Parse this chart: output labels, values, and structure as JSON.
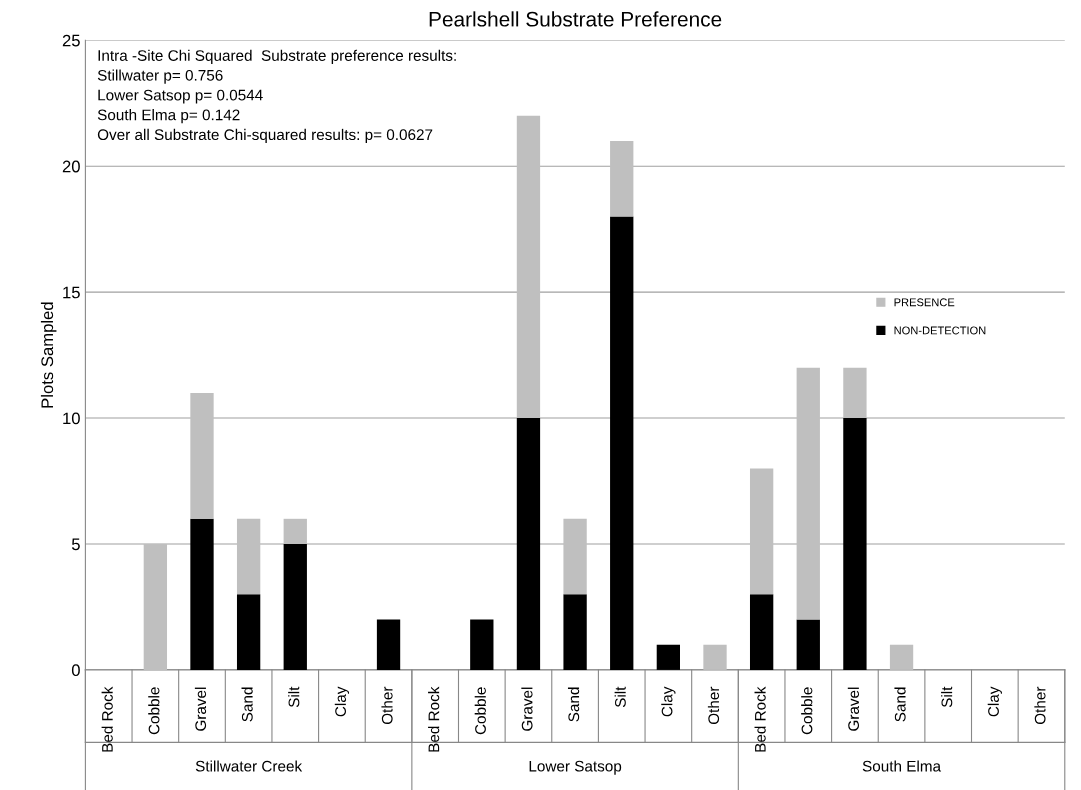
{
  "chart_data": {
    "type": "bar",
    "title": "Pearlshell Substrate Preference",
    "ylabel": "Plots Sampled",
    "categories": [
      "Bed Rock",
      "Cobble",
      "Gravel",
      "Sand",
      "Silt",
      "Clay",
      "Other",
      "Bed Rock",
      "Cobble",
      "Gravel",
      "Sand",
      "Silt",
      "Clay",
      "Other",
      "Bed Rock",
      "Cobble",
      "Gravel",
      "Sand",
      "Silt",
      "Clay",
      "Other"
    ],
    "stacked": true,
    "series": [
      {
        "name": "NON-DETECTION",
        "color": "#000000",
        "values": [
          0,
          0,
          6,
          3,
          5,
          0,
          2,
          0,
          2,
          10,
          3,
          18,
          1,
          0,
          3,
          2,
          10,
          0,
          0,
          0,
          0
        ]
      },
      {
        "name": "PRESENCE",
        "color": "#bfbfbf",
        "values": [
          0,
          5,
          5,
          3,
          1,
          0,
          0,
          0,
          0,
          12,
          3,
          3,
          0,
          1,
          5,
          10,
          2,
          1,
          0,
          0,
          0
        ]
      }
    ],
    "ylim": [
      0,
      25
    ],
    "yticks": [
      0,
      5,
      10,
      15,
      20,
      25
    ],
    "grid": "y",
    "legend": "right",
    "annotations": [
      "Intra -Site Chi Squared  Substrate preference results:\nStillwater p= 0.756\nLower Satsop p= 0.0544\nSouth Elma p= 0.142\nOver all Substrate Chi-squared results: p= 0.0627",
      "Stillwater Creek",
      "Lower Satsop",
      "South Elma"
    ]
  }
}
